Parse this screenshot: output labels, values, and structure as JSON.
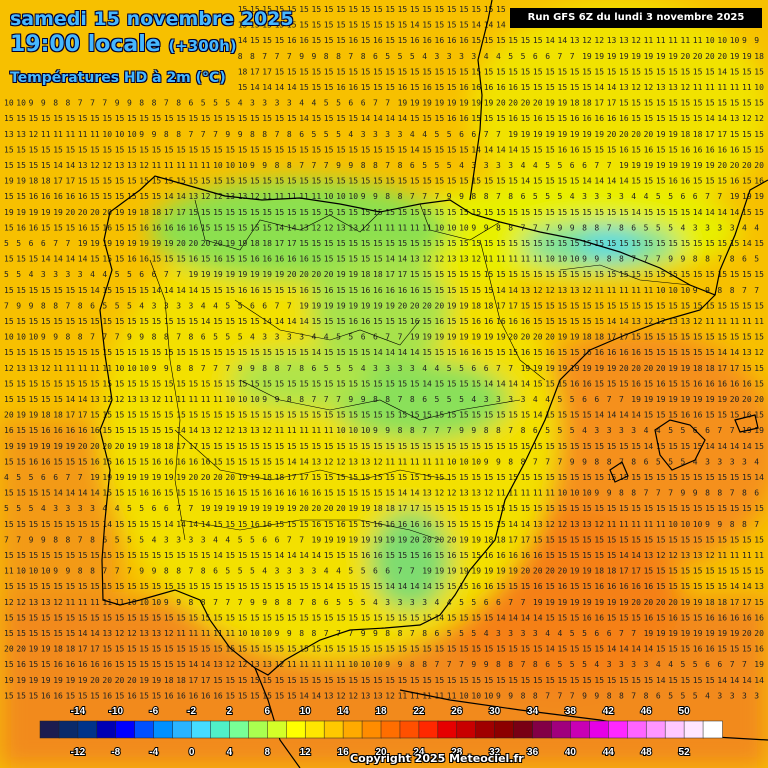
{
  "header": {
    "date_line": "samedi 15 novembre 2025",
    "time_line": "19:00 locale",
    "lead_time": "(+300h)",
    "parameter": "Températures HD à 2m (°C)"
  },
  "run_info": "Run GFS 6Z du lundi 3 novembre 2025",
  "copyright": "Copyright 2025 Meteociel.fr",
  "legend": {
    "top_labels": [
      "-14",
      "-10",
      "-6",
      "-2",
      "2",
      "6",
      "10",
      "14",
      "18",
      "22",
      "26",
      "30",
      "34",
      "38",
      "42",
      "46",
      "50"
    ],
    "bottom_labels": [
      "-12",
      "-8",
      "-4",
      "0",
      "4",
      "8",
      "12",
      "16",
      "20",
      "24",
      "28",
      "32",
      "36",
      "40",
      "44",
      "48",
      "52"
    ],
    "colors": [
      "#1c1c50",
      "#0a2a6a",
      "#00338a",
      "#0000b4",
      "#0000ff",
      "#0050ff",
      "#0090ff",
      "#2ab4ff",
      "#46dcff",
      "#50f0c8",
      "#78ff96",
      "#aaff50",
      "#d4ff28",
      "#ffff00",
      "#ffe600",
      "#ffc800",
      "#ffaa00",
      "#ff8c00",
      "#ff6e00",
      "#ff5000",
      "#ff2800",
      "#e60000",
      "#c80000",
      "#a00000",
      "#8c0000",
      "#780014",
      "#820046",
      "#a0007d",
      "#c800b4",
      "#e600e6",
      "#ff28ff",
      "#ff64ff",
      "#ff96ff",
      "#ffc8ff",
      "#ffe6ff",
      "#ffffff"
    ]
  },
  "map": {
    "grid_rows_top": [
      "15 15 15 15 15 15 15 15 15 15 15 15 15 15 15 15 15 15 15 15 15 15 15 15 15 15 15 15 15 15 15 15 15 15 15 15 14",
      "15 15 15 15 14 14 14 14 15 15 15 16 16 15 15 15 16 15 16 15 15 16 16 16 16 16 15 15 15 15 15 15 14 14 13"
    ],
    "grid_rows_east": [
      "12 12 13 13 12 11 11 11 11 11 10 10 10 9 9 8 8 7 7 7",
      "9 9 8 8 7 8 6 5 5 5 4 3 3 3 3 4 4 5 5 6 6 7 7",
      "19 19 19 19 19 19 19 19 20 20 20 20 19 19 18 18 17 17"
    ],
    "iso_zones": [
      "7",
      "5",
      "3",
      "19",
      "20",
      "21"
    ]
  }
}
